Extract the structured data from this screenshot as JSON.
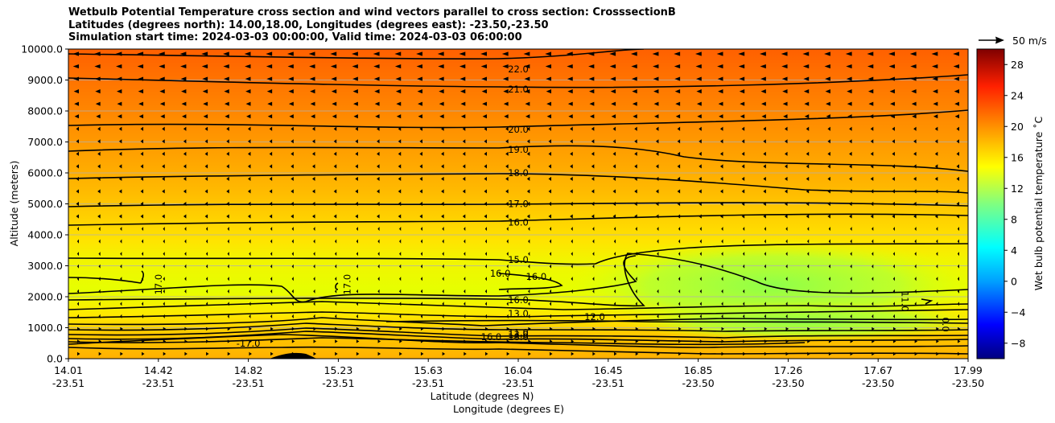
{
  "chart_data": {
    "type": "contour",
    "title_lines": [
      "Wetbulb Potential Temperature cross section and wind vectors parallel to cross section: CrosssectionB",
      "Latitudes (degrees north): 14.00,18.00, Longitudes (degrees east): -23.50,-23.50",
      "Simulation start time: 2024-03-03 00:00:00, Valid time: 2024-03-03 06:00:00"
    ],
    "ylabel": "Altitude (meters)",
    "xlabel_lat": "Latitude (degrees N)",
    "xlabel_lon": "Longitude (degrees E)",
    "ylim": [
      0,
      10000
    ],
    "y_ticks": [
      "0.0",
      "1000.0",
      "2000.0",
      "3000.0",
      "4000.0",
      "5000.0",
      "6000.0",
      "7000.0",
      "8000.0",
      "9000.0",
      "10000.0"
    ],
    "x_ticks": [
      {
        "lat": "14.01",
        "lon": "-23.51"
      },
      {
        "lat": "14.42",
        "lon": "-23.51"
      },
      {
        "lat": "14.82",
        "lon": "-23.51"
      },
      {
        "lat": "15.23",
        "lon": "-23.51"
      },
      {
        "lat": "15.63",
        "lon": "-23.51"
      },
      {
        "lat": "16.04",
        "lon": "-23.51"
      },
      {
        "lat": "16.45",
        "lon": "-23.51"
      },
      {
        "lat": "16.85",
        "lon": "-23.50"
      },
      {
        "lat": "17.26",
        "lon": "-23.50"
      },
      {
        "lat": "17.67",
        "lon": "-23.50"
      },
      {
        "lat": "17.99",
        "lon": "-23.50"
      }
    ],
    "colorbar": {
      "label": "Wet bulb potential temperature ˚C",
      "range": [
        -10,
        30
      ],
      "ticks": [
        "−8",
        "−4",
        "0",
        "4",
        "8",
        "12",
        "16",
        "20",
        "24",
        "28"
      ]
    },
    "vector_key": "50 m/s",
    "contour_labels": [
      {
        "text": "22.0",
        "x": 0.5,
        "y": 9350
      },
      {
        "text": "21.0",
        "x": 0.5,
        "y": 8700
      },
      {
        "text": "20.0",
        "x": 0.5,
        "y": 7400
      },
      {
        "text": "19.0",
        "x": 0.5,
        "y": 6750
      },
      {
        "text": "18.0",
        "x": 0.5,
        "y": 6000
      },
      {
        "text": "17.0",
        "x": 0.5,
        "y": 5000
      },
      {
        "text": "16.0",
        "x": 0.5,
        "y": 4400
      },
      {
        "text": "15.0",
        "x": 0.5,
        "y": 3200
      },
      {
        "text": "16.0",
        "x": 0.48,
        "y": 2750
      },
      {
        "text": "16.0",
        "x": 0.52,
        "y": 2650
      },
      {
        "text": "16.0",
        "x": 0.5,
        "y": 1900
      },
      {
        "text": "13.0",
        "x": 0.5,
        "y": 1450
      },
      {
        "text": "12.0",
        "x": 0.585,
        "y": 1350
      },
      {
        "text": "11.0",
        "x": 0.5,
        "y": 850
      },
      {
        "text": "13.0",
        "x": 0.5,
        "y": 780
      },
      {
        "text": "18.0",
        "x": 0.5,
        "y": 700
      },
      {
        "text": "16.0",
        "x": 0.47,
        "y": 700
      },
      {
        "text": "-17.0",
        "x": 0.2,
        "y": 500
      },
      {
        "text": "17.0",
        "x": 0.1,
        "y": 2400
      },
      {
        "text": "17.0",
        "x": 0.31,
        "y": 2400
      },
      {
        "text": "11.0",
        "x": 0.93,
        "y": 1850
      },
      {
        "text": "0.0",
        "x": 0.975,
        "y": 1100
      }
    ]
  }
}
